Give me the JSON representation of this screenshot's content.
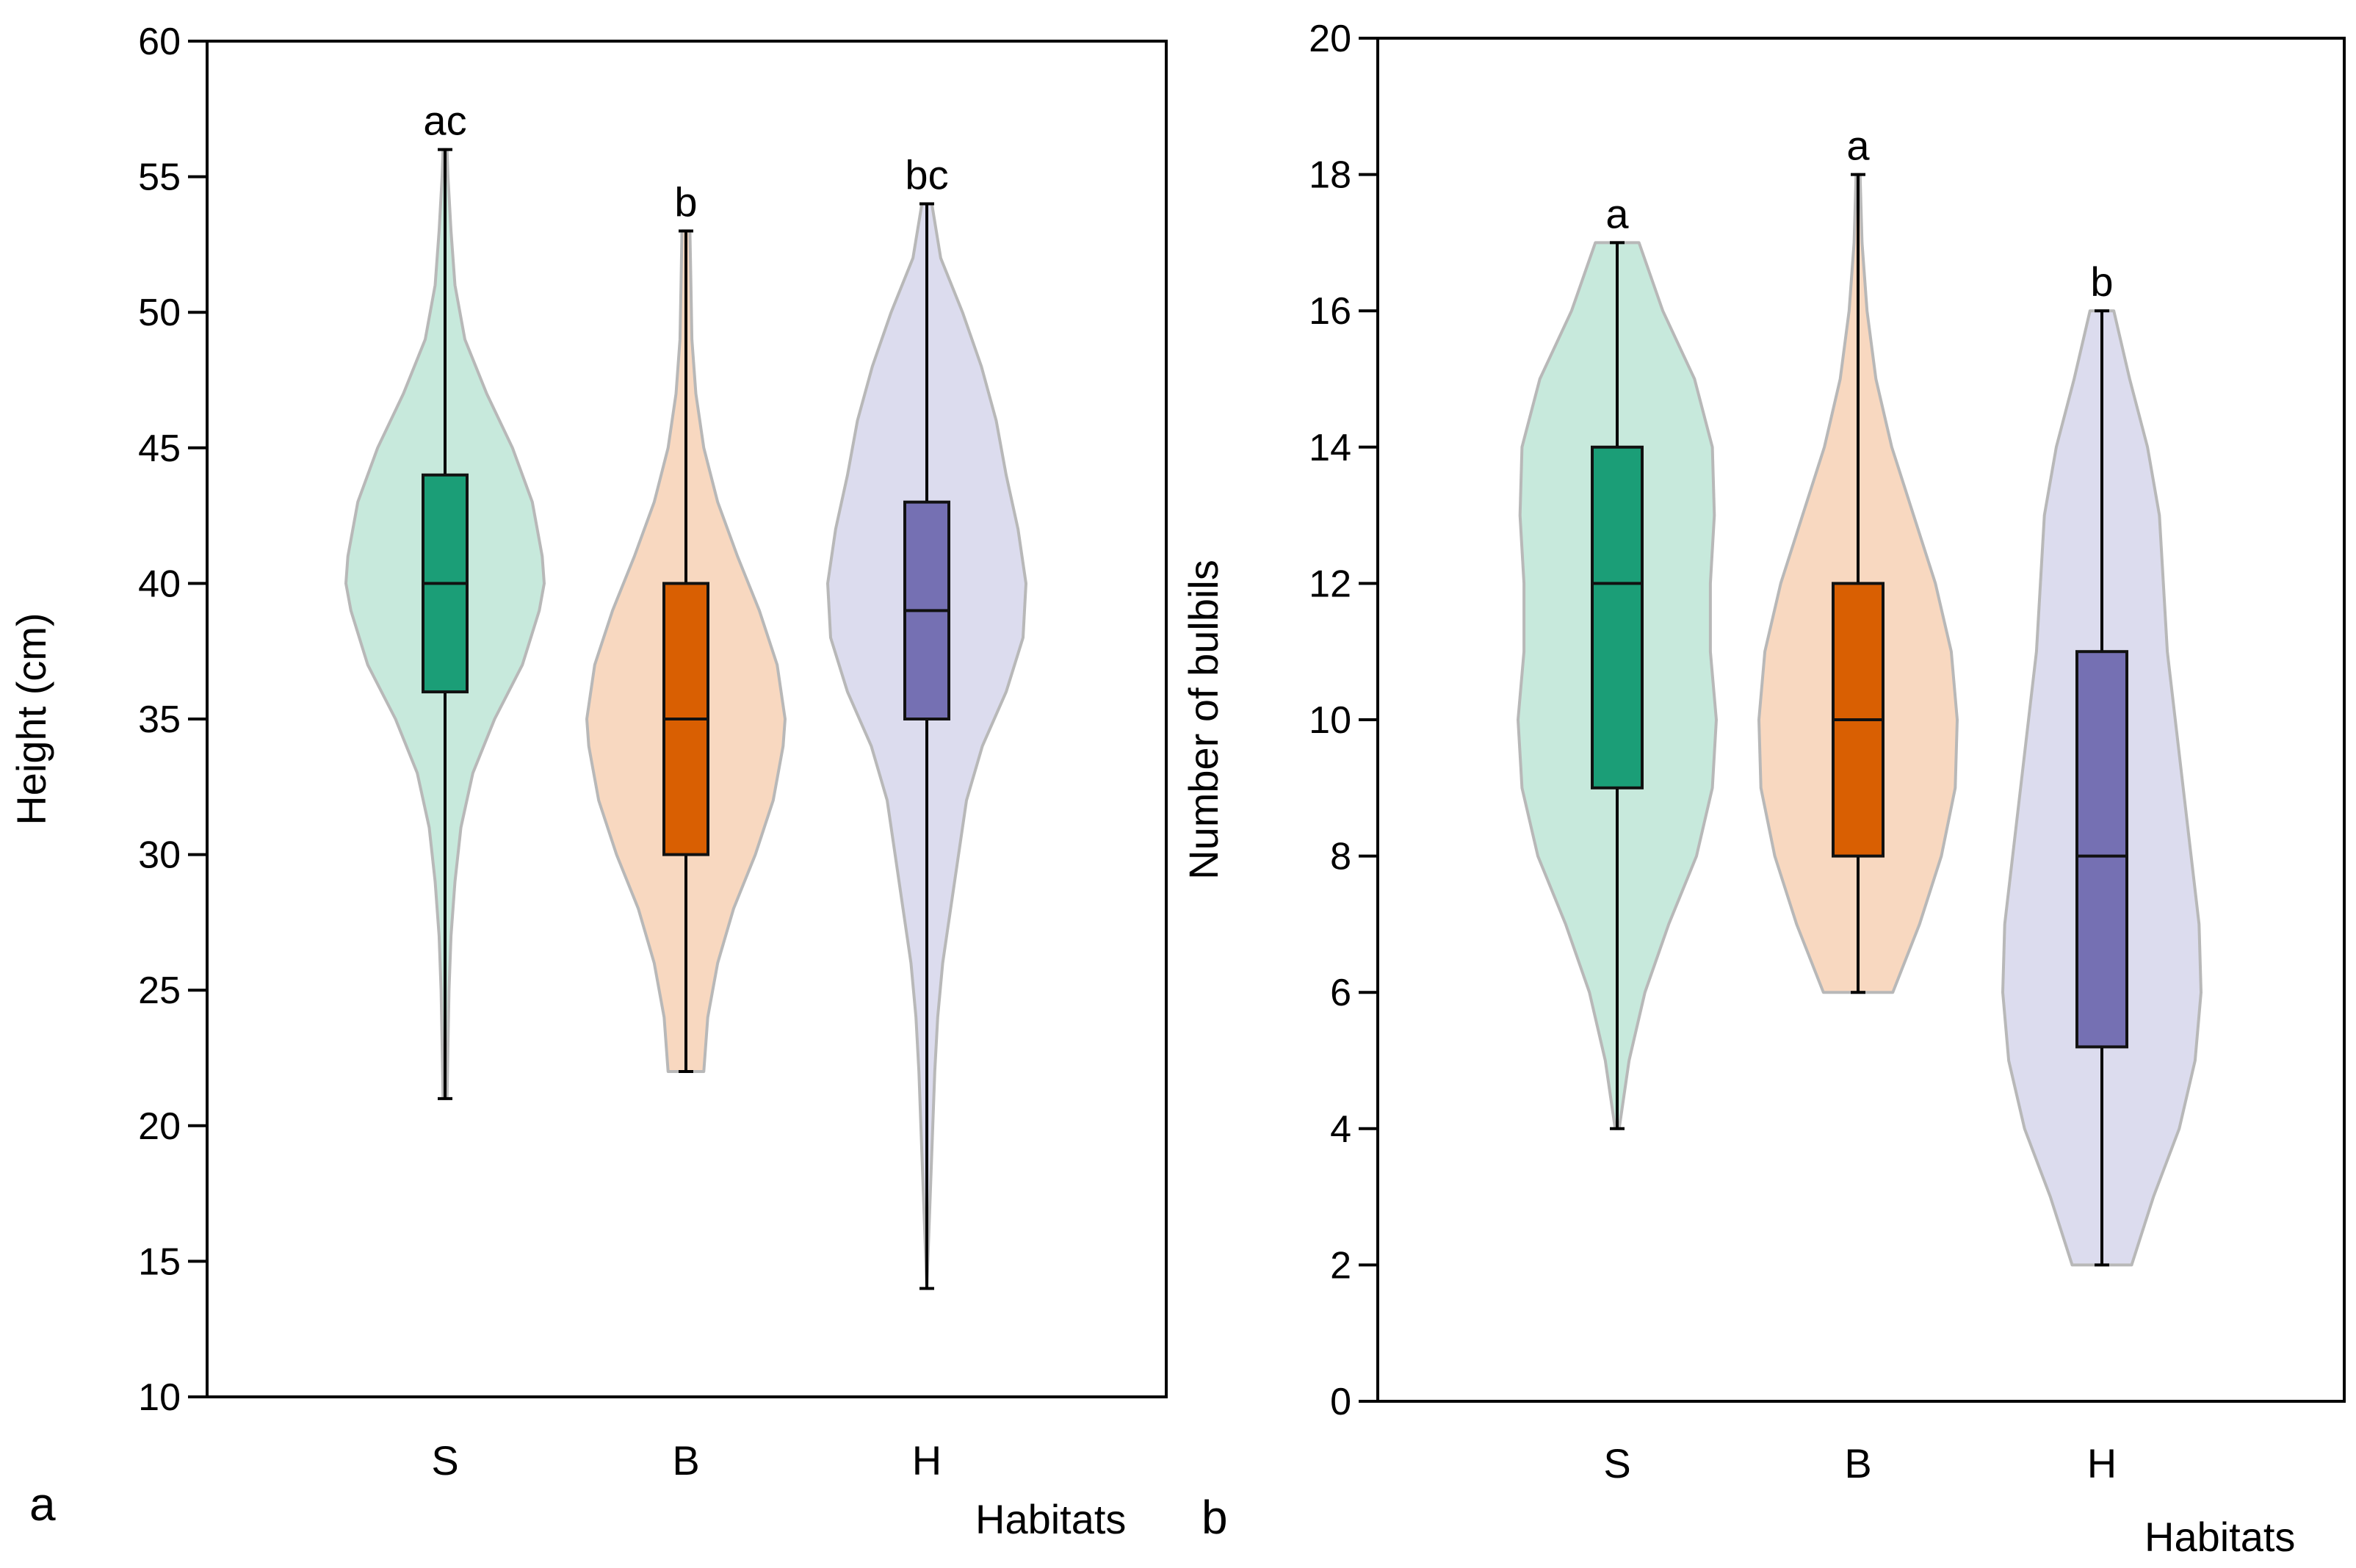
{
  "chart_data": [
    {
      "type": "violin",
      "panel_label": "a",
      "ylabel": "Height (cm)",
      "xlabel": "Habitats",
      "ylim": [
        10,
        60
      ],
      "yticks": [
        10,
        15,
        20,
        25,
        30,
        35,
        40,
        45,
        50,
        55,
        60
      ],
      "categories": [
        "S",
        "B",
        "H"
      ],
      "grid": false,
      "colors": {
        "S": {
          "fill": "#c7e9dc",
          "box": "#1b9e77"
        },
        "B": {
          "fill": "#f8d8c0",
          "box": "#d95f02"
        },
        "H": {
          "fill": "#dcdcee",
          "box": "#7570b3"
        }
      },
      "groups": [
        {
          "category": "S",
          "letters": "ac",
          "min": 21,
          "q1": 36,
          "median": 40,
          "q3": 44,
          "max": 56,
          "density": [
            [
              21,
              0.02
            ],
            [
              23,
              0.03
            ],
            [
              25,
              0.04
            ],
            [
              27,
              0.06
            ],
            [
              29,
              0.1
            ],
            [
              31,
              0.16
            ],
            [
              33,
              0.28
            ],
            [
              35,
              0.5
            ],
            [
              37,
              0.78
            ],
            [
              39,
              0.95
            ],
            [
              40,
              1.0
            ],
            [
              41,
              0.98
            ],
            [
              43,
              0.88
            ],
            [
              45,
              0.68
            ],
            [
              47,
              0.42
            ],
            [
              49,
              0.2
            ],
            [
              51,
              0.1
            ],
            [
              53,
              0.06
            ],
            [
              55,
              0.03
            ],
            [
              56,
              0.02
            ]
          ]
        },
        {
          "category": "B",
          "letters": "b",
          "min": 22,
          "q1": 30,
          "median": 35,
          "q3": 40,
          "max": 53,
          "density": [
            [
              22,
              0.18
            ],
            [
              24,
              0.22
            ],
            [
              26,
              0.32
            ],
            [
              28,
              0.48
            ],
            [
              30,
              0.7
            ],
            [
              32,
              0.88
            ],
            [
              34,
              0.98
            ],
            [
              35,
              1.0
            ],
            [
              37,
              0.92
            ],
            [
              39,
              0.74
            ],
            [
              41,
              0.52
            ],
            [
              43,
              0.32
            ],
            [
              45,
              0.18
            ],
            [
              47,
              0.1
            ],
            [
              49,
              0.06
            ],
            [
              51,
              0.05
            ],
            [
              53,
              0.04
            ]
          ]
        },
        {
          "category": "H",
          "letters": "bc",
          "min": 14,
          "q1": 35,
          "median": 39,
          "q3": 43,
          "max": 54,
          "density": [
            [
              14,
              0.0
            ],
            [
              16,
              0.02
            ],
            [
              18,
              0.04
            ],
            [
              20,
              0.06
            ],
            [
              22,
              0.08
            ],
            [
              24,
              0.11
            ],
            [
              26,
              0.16
            ],
            [
              28,
              0.24
            ],
            [
              30,
              0.32
            ],
            [
              32,
              0.4
            ],
            [
              34,
              0.56
            ],
            [
              36,
              0.8
            ],
            [
              38,
              0.97
            ],
            [
              40,
              1.0
            ],
            [
              42,
              0.92
            ],
            [
              44,
              0.8
            ],
            [
              46,
              0.7
            ],
            [
              48,
              0.55
            ],
            [
              50,
              0.36
            ],
            [
              52,
              0.14
            ],
            [
              54,
              0.05
            ]
          ]
        }
      ]
    },
    {
      "type": "violin",
      "panel_label": "b",
      "ylabel": "Number of bulbils",
      "xlabel": "Habitats",
      "ylim": [
        0,
        20
      ],
      "yticks": [
        0,
        2,
        4,
        6,
        8,
        10,
        12,
        14,
        16,
        18,
        20
      ],
      "categories": [
        "S",
        "B",
        "H"
      ],
      "grid": false,
      "colors": {
        "S": {
          "fill": "#c7e9dc",
          "box": "#1b9e77"
        },
        "B": {
          "fill": "#f8d8c0",
          "box": "#d95f02"
        },
        "H": {
          "fill": "#dcdcee",
          "box": "#7570b3"
        }
      },
      "groups": [
        {
          "category": "S",
          "letters": "a",
          "min": 4,
          "q1": 9,
          "median": 12,
          "q3": 14,
          "max": 17,
          "density": [
            [
              4,
              0.02
            ],
            [
              5,
              0.12
            ],
            [
              6,
              0.28
            ],
            [
              7,
              0.52
            ],
            [
              8,
              0.8
            ],
            [
              9,
              0.96
            ],
            [
              10,
              1.0
            ],
            [
              11,
              0.94
            ],
            [
              12,
              0.94
            ],
            [
              13,
              0.98
            ],
            [
              14,
              0.96
            ],
            [
              15,
              0.78
            ],
            [
              16,
              0.46
            ],
            [
              17,
              0.22
            ]
          ]
        },
        {
          "category": "B",
          "letters": "a",
          "min": 6,
          "q1": 8,
          "median": 10,
          "q3": 12,
          "max": 18,
          "density": [
            [
              6,
              0.35
            ],
            [
              7,
              0.62
            ],
            [
              8,
              0.84
            ],
            [
              9,
              0.98
            ],
            [
              10,
              1.0
            ],
            [
              11,
              0.94
            ],
            [
              12,
              0.78
            ],
            [
              13,
              0.56
            ],
            [
              14,
              0.34
            ],
            [
              15,
              0.18
            ],
            [
              16,
              0.09
            ],
            [
              17,
              0.04
            ],
            [
              18,
              0.02
            ]
          ]
        },
        {
          "category": "H",
          "letters": "b",
          "min": 2,
          "q1": 5.2,
          "median": 8,
          "q3": 11,
          "max": 16,
          "density": [
            [
              2,
              0.3
            ],
            [
              3,
              0.52
            ],
            [
              4,
              0.78
            ],
            [
              5,
              0.94
            ],
            [
              6,
              1.0
            ],
            [
              7,
              0.98
            ],
            [
              8,
              0.9
            ],
            [
              9,
              0.82
            ],
            [
              10,
              0.74
            ],
            [
              11,
              0.66
            ],
            [
              12,
              0.62
            ],
            [
              13,
              0.58
            ],
            [
              14,
              0.46
            ],
            [
              15,
              0.28
            ],
            [
              16,
              0.12
            ]
          ]
        }
      ]
    }
  ]
}
